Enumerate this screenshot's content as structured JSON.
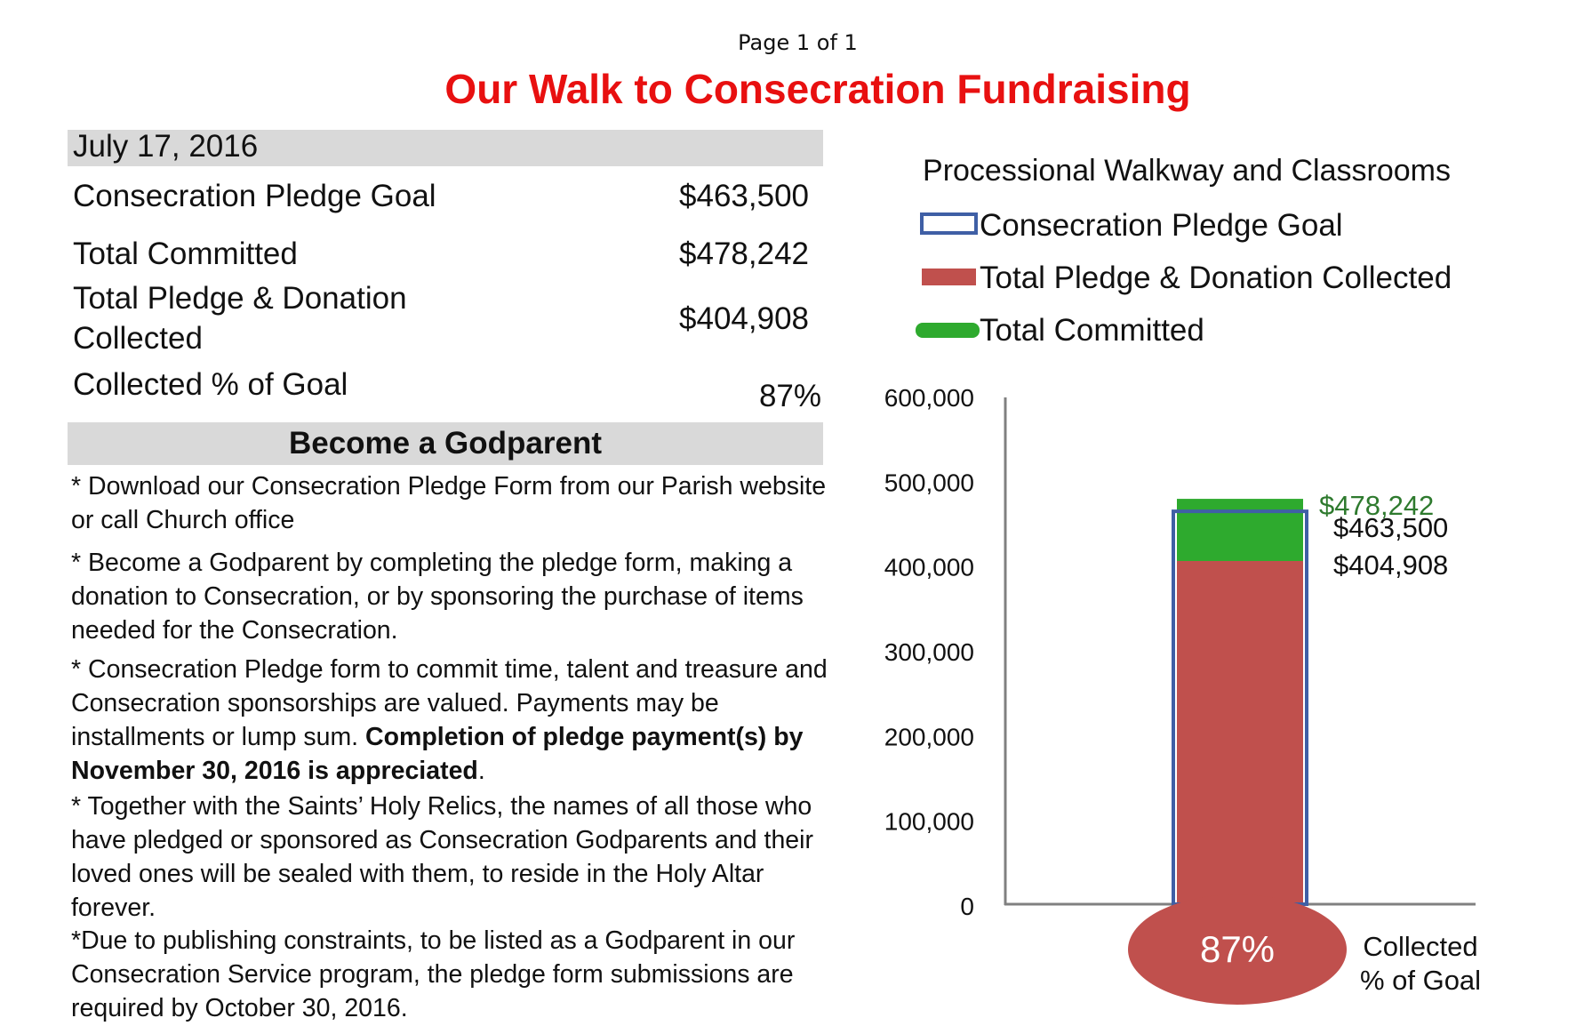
{
  "page_label": "Page 1 of 1",
  "title": "Our Walk to Consecration Fundraising",
  "summary": {
    "date": "July 17, 2016",
    "rows": [
      {
        "label": "Consecration Pledge Goal",
        "value": "$463,500"
      },
      {
        "label": "Total Committed",
        "value": "$478,242"
      },
      {
        "label_line1": "Total Pledge & Donation",
        "label_line2": "Collected",
        "value": "$404,908"
      },
      {
        "label": "Collected % of Goal",
        "value": "87%"
      }
    ]
  },
  "godparent": {
    "heading": "Become a Godparent",
    "paragraphs": [
      "* Download our Consecration Pledge Form from our Parish website or call Church office",
      "* Become a Godparent by completing the pledge form, making a donation to Consecration, or by sponsoring the purchase of items needed for the Consecration.",
      "* Consecration Pledge form to commit time, talent and treasure and Consecration sponsorships are valued. Payments may be installments or lump sum.",
      "Completion of pledge payment(s) by November 30,  2016 is appreciated",
      ".",
      "*  Together with the Saints’ Holy Relics, the names of all those who have pledged or sponsored as Consecration Godparents and their loved ones will be sealed with them, to reside in the Holy Altar forever.",
      "*Due to publishing constraints, to be listed as a Godparent in our Consecration Service program, the pledge form submissions are required by October 30, 2016."
    ]
  },
  "chart_data": {
    "type": "bar",
    "title": "Processional Walkway and Classrooms",
    "ylim": [
      0,
      600000
    ],
    "yticks": [
      0,
      100000,
      200000,
      300000,
      400000,
      500000,
      600000
    ],
    "ytick_labels": [
      "0",
      "100,000",
      "200,000",
      "300,000",
      "400,000",
      "500,000",
      "600,000"
    ],
    "series": [
      {
        "name": "Consecration Pledge Goal",
        "value": 463500,
        "label": "$463,500",
        "style": "outline",
        "color": "#3f5fa5"
      },
      {
        "name": "Total Pledge & Donation Collected",
        "value": 404908,
        "label": "$404,908",
        "style": "fill",
        "color": "#c0504d"
      },
      {
        "name": "Total Committed",
        "value": 478242,
        "label": "$478,242",
        "style": "fill",
        "color": "#2eaa2e"
      }
    ],
    "percent_bubble": {
      "value": 0.87,
      "label": "87%",
      "caption_line1": "Collected",
      "caption_line2": "% of Goal",
      "color": "#c0504d"
    },
    "legend_position": "top",
    "grid": false
  }
}
